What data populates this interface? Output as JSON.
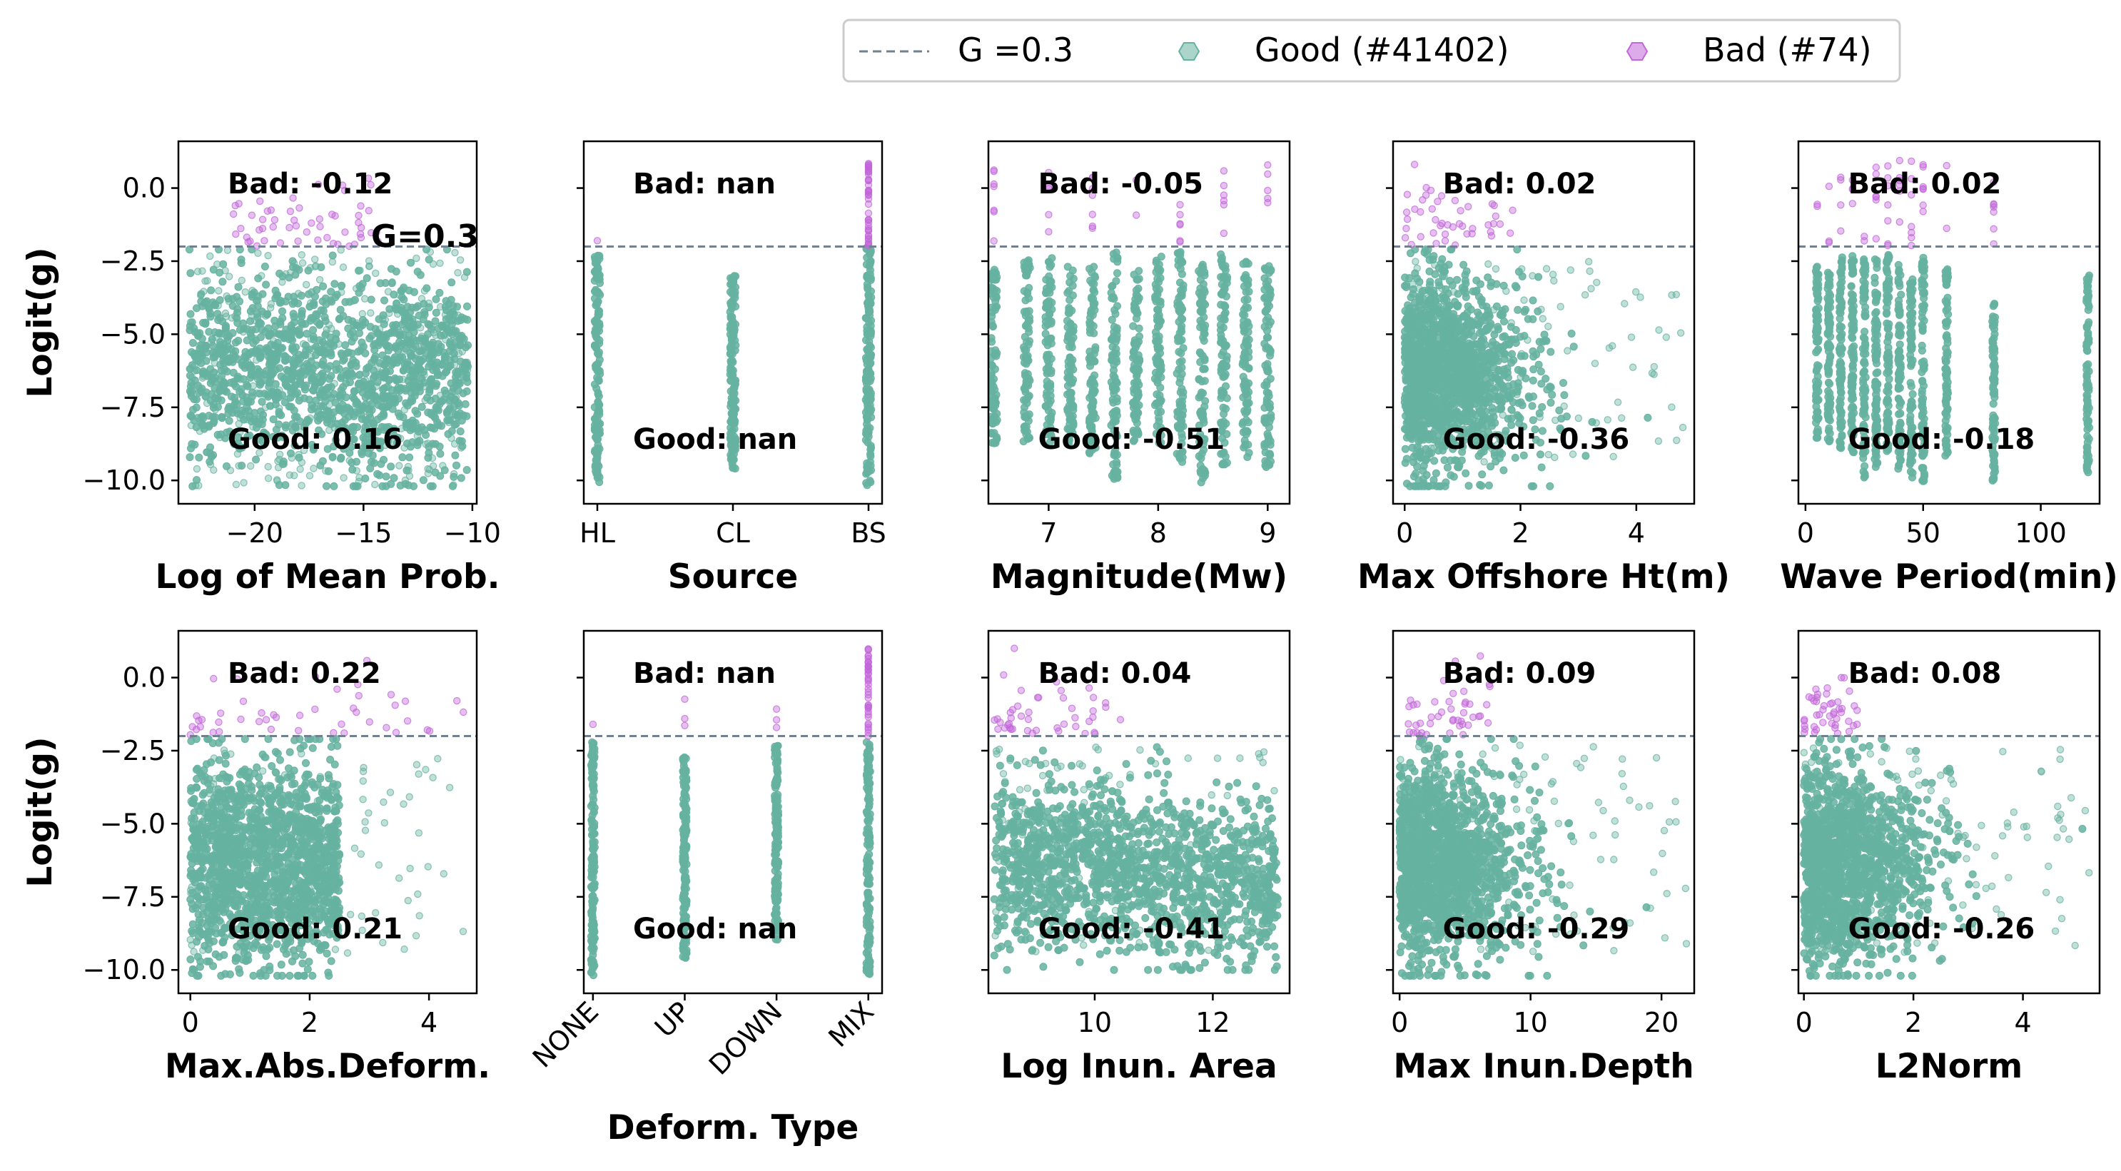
{
  "colors": {
    "good": "#66b2a0",
    "bad": "#c266d8",
    "threshold_line": "#708090",
    "axis": "#000000"
  },
  "legend": {
    "placement": "top-center",
    "entries": [
      {
        "label": "G =0.3",
        "marker": "dashed-line"
      },
      {
        "label": "Good (#41402)",
        "marker": "hexagon-good"
      },
      {
        "label": "Bad (#74)",
        "marker": "hexagon-bad"
      }
    ]
  },
  "annotation": {
    "text": "G=0.3"
  },
  "chart_data": [
    {
      "type": "scatter",
      "xlabel": "Log of Mean Prob.",
      "ylabel": "Logit(g)",
      "xlim": [
        -23.5,
        -9.8
      ],
      "ylim": [
        -10.8,
        1.6
      ],
      "xticks": [
        -20,
        -15,
        -10
      ],
      "xtick_labels": [
        "−20",
        "−15",
        "−10"
      ],
      "yticks": [
        0,
        -2.5,
        -5,
        -7.5,
        -10
      ],
      "ytick_labels": [
        "0.0",
        "−2.5",
        "−5.0",
        "−7.5",
        "−10.0"
      ],
      "threshold": -2.0,
      "bad_corr_text": "Bad: -0.12",
      "good_corr_text": "Good: 0.16",
      "good_cloud": {
        "x_range": [
          -23,
          -10.2
        ],
        "y_range": [
          -10.2,
          -2.1
        ]
      },
      "bad_points": {
        "x_range": [
          -21,
          -14
        ],
        "y_range": [
          -2.0,
          1.0
        ]
      }
    },
    {
      "type": "scatter",
      "xlabel": "Source",
      "ylabel": "",
      "xlim": [
        -0.1,
        2.1
      ],
      "ylim": [
        -10.8,
        1.6
      ],
      "categories": [
        "HL",
        "CL",
        "BS"
      ],
      "xticks": [
        0,
        1,
        2
      ],
      "xtick_labels": [
        "HL",
        "CL",
        "BS"
      ],
      "yticks": [
        0,
        -2.5,
        -5,
        -7.5,
        -10
      ],
      "ytick_labels": [
        "",
        "",
        "",
        "",
        ""
      ],
      "threshold": -2.0,
      "bad_corr_text": "Bad: nan",
      "good_corr_text": "Good: nan",
      "good_columns": [
        {
          "x": 0,
          "y_range": [
            -10.1,
            -2.3
          ]
        },
        {
          "x": 1,
          "y_range": [
            -9.6,
            -3.0
          ]
        },
        {
          "x": 2,
          "y_range": [
            -10.2,
            -2.0
          ]
        }
      ],
      "bad_columns": [
        {
          "x": 2,
          "y_range": [
            -2.0,
            1.0
          ]
        }
      ]
    },
    {
      "type": "scatter",
      "xlabel": "Magnitude(Mw)",
      "ylabel": "",
      "xlim": [
        6.45,
        9.2
      ],
      "ylim": [
        -10.8,
        1.6
      ],
      "xticks": [
        7,
        8,
        9
      ],
      "xtick_labels": [
        "7",
        "8",
        "9"
      ],
      "yticks": [
        0,
        -2.5,
        -5,
        -7.5,
        -10
      ],
      "ytick_labels": [
        "",
        "",
        "",
        "",
        ""
      ],
      "threshold": -2.0,
      "bad_corr_text": "Bad: -0.05",
      "good_corr_text": "Good: -0.51",
      "good_columns_x": [
        6.5,
        6.8,
        7.0,
        7.2,
        7.4,
        7.6,
        7.8,
        8.0,
        8.2,
        8.4,
        8.6,
        8.8,
        9.0
      ]
    },
    {
      "type": "scatter",
      "xlabel": "Max Offshore Ht(m)",
      "ylabel": "",
      "xlim": [
        -0.2,
        5.0
      ],
      "ylim": [
        -10.8,
        1.6
      ],
      "xticks": [
        0,
        2,
        4
      ],
      "xtick_labels": [
        "0",
        "2",
        "4"
      ],
      "yticks": [
        0,
        -2.5,
        -5,
        -7.5,
        -10
      ],
      "ytick_labels": [
        "",
        "",
        "",
        "",
        ""
      ],
      "threshold": -2.0,
      "bad_corr_text": "Bad: 0.02",
      "good_corr_text": "Good: -0.36",
      "good_cloud": {
        "x_range": [
          0,
          4.9
        ],
        "y_range": [
          -10.2,
          -2.1
        ]
      },
      "bad_points": {
        "x_range": [
          0,
          2.0
        ],
        "y_range": [
          -2.0,
          1.0
        ]
      }
    },
    {
      "type": "scatter",
      "xlabel": "Wave Period(min)",
      "ylabel": "",
      "xlim": [
        -3,
        125
      ],
      "ylim": [
        -10.8,
        1.6
      ],
      "xticks": [
        0,
        50,
        100
      ],
      "xtick_labels": [
        "0",
        "50",
        "100"
      ],
      "yticks": [
        0,
        -2.5,
        -5,
        -7.5,
        -10
      ],
      "ytick_labels": [
        "",
        "",
        "",
        "",
        ""
      ],
      "threshold": -2.0,
      "bad_corr_text": "Bad: 0.02",
      "good_corr_text": "Good: -0.18",
      "good_columns_x": [
        5,
        10,
        15,
        20,
        25,
        30,
        35,
        40,
        45,
        50,
        60,
        80,
        120
      ]
    },
    {
      "type": "scatter",
      "xlabel": "Max.Abs.Deform.",
      "ylabel": "Logit(g)",
      "xlim": [
        -0.2,
        4.8
      ],
      "ylim": [
        -10.8,
        1.6
      ],
      "xticks": [
        0,
        2,
        4
      ],
      "xtick_labels": [
        "0",
        "2",
        "4"
      ],
      "yticks": [
        0,
        -2.5,
        -5,
        -7.5,
        -10
      ],
      "ytick_labels": [
        "0.0",
        "−2.5",
        "−5.0",
        "−7.5",
        "−10.0"
      ],
      "threshold": -2.0,
      "bad_corr_text": "Bad: 0.22",
      "good_corr_text": "Good: 0.21",
      "good_cloud": {
        "x_range": [
          0,
          4.6
        ],
        "y_range": [
          -10.2,
          -2.1
        ]
      },
      "bad_points": {
        "x_range": [
          0,
          4.6
        ],
        "y_range": [
          -2.0,
          1.0
        ]
      }
    },
    {
      "type": "scatter",
      "xlabel": "Deform. Type",
      "ylabel": "",
      "xlim": [
        -0.1,
        3.15
      ],
      "ylim": [
        -10.8,
        1.6
      ],
      "categories": [
        "NONE",
        "UP",
        "DOWN",
        "MIX"
      ],
      "xticks": [
        0,
        1,
        2,
        3
      ],
      "xtick_labels": [
        "NONE",
        "UP",
        "DOWN",
        "MIX"
      ],
      "yticks": [
        0,
        -2.5,
        -5,
        -7.5,
        -10
      ],
      "ytick_labels": [
        "",
        "",
        "",
        "",
        ""
      ],
      "threshold": -2.0,
      "bad_corr_text": "Bad: nan",
      "good_corr_text": "Good: nan"
    },
    {
      "type": "scatter",
      "xlabel": "Log Inun. Area",
      "ylabel": "",
      "xlim": [
        8.2,
        13.3
      ],
      "ylim": [
        -10.8,
        1.6
      ],
      "xticks": [
        10,
        12
      ],
      "xtick_labels": [
        "10",
        "12"
      ],
      "yticks": [
        0,
        -2.5,
        -5,
        -7.5,
        -10
      ],
      "ytick_labels": [
        "",
        "",
        "",
        "",
        ""
      ],
      "threshold": -2.0,
      "bad_corr_text": "Bad: 0.04",
      "good_corr_text": "Good: -0.41",
      "good_cloud": {
        "x_range": [
          8.3,
          13.1
        ],
        "y_range": [
          -10.0,
          -2.1
        ]
      },
      "bad_points": {
        "x_range": [
          8.3,
          10.5
        ],
        "y_range": [
          -2.0,
          0.8
        ]
      }
    },
    {
      "type": "scatter",
      "xlabel": "Max Inun.Depth",
      "ylabel": "",
      "xlim": [
        -0.5,
        22.5
      ],
      "ylim": [
        -10.8,
        1.6
      ],
      "xticks": [
        0,
        10,
        20
      ],
      "xtick_labels": [
        "0",
        "10",
        "20"
      ],
      "yticks": [
        0,
        -2.5,
        -5,
        -7.5,
        -10
      ],
      "ytick_labels": [
        "",
        "",
        "",
        "",
        ""
      ],
      "threshold": -2.0,
      "bad_corr_text": "Bad: 0.09",
      "good_corr_text": "Good: -0.29",
      "good_cloud": {
        "x_range": [
          0,
          22
        ],
        "y_range": [
          -10.2,
          -2.1
        ]
      },
      "bad_points": {
        "x_range": [
          0.5,
          7.0
        ],
        "y_range": [
          -2.0,
          0.8
        ]
      }
    },
    {
      "type": "scatter",
      "xlabel": "L2Norm",
      "ylabel": "",
      "xlim": [
        -0.1,
        5.4
      ],
      "ylim": [
        -10.8,
        1.6
      ],
      "xticks": [
        0,
        2,
        4
      ],
      "xtick_labels": [
        "0",
        "2",
        "4"
      ],
      "yticks": [
        0,
        -2.5,
        -5,
        -7.5,
        -10
      ],
      "ytick_labels": [
        "",
        "",
        "",
        "",
        ""
      ],
      "threshold": -2.0,
      "bad_corr_text": "Bad: 0.08",
      "good_corr_text": "Good: -0.26",
      "good_cloud": {
        "x_range": [
          0,
          5.3
        ],
        "y_range": [
          -10.2,
          -2.1
        ]
      },
      "bad_points": {
        "x_range": [
          0,
          1.0
        ],
        "y_range": [
          -2.0,
          1.0
        ]
      }
    }
  ]
}
